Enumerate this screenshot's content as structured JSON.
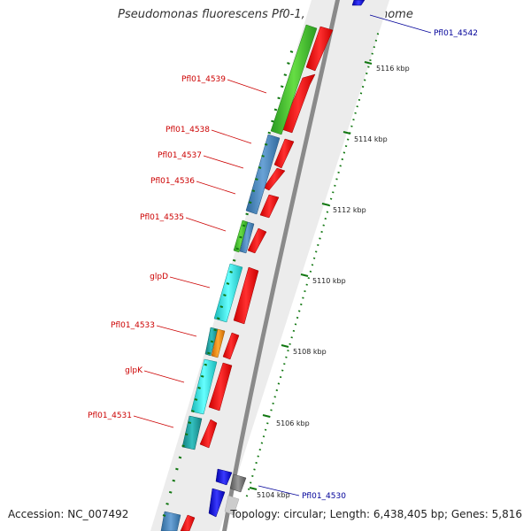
{
  "title": "Pseudomonas fluorescens Pf0-1, complete genome",
  "accession_text": "Accession: NC_007492",
  "topology_text": "Topology: circular; Length: 6,438,405 bp; Genes: 5,816",
  "colors": {
    "red_cds": "#ff1a1a",
    "green_gene": "#44cc33",
    "steelblue_gene": "#4a86c0",
    "cyan_gene": "#22eeee",
    "teal_gene": "#22aaaa",
    "orange_gene": "#ff9911",
    "blue_gene": "#1a1aee",
    "grey_gene": "#888888",
    "backbone": "#8a8a8a",
    "tick_green": "#117711",
    "label_red": "#cc0000",
    "label_blue": "#000099"
  },
  "ticks": [
    "5104 kbp",
    "5106 kbp",
    "5108 kbp",
    "5110 kbp",
    "5112 kbp",
    "5114 kbp",
    "5116 kbp"
  ],
  "left_labels": [
    "Pfl01_4539",
    "Pfl01_4538",
    "Pfl01_4537",
    "Pfl01_4536",
    "Pfl01_4535",
    "glpD",
    "Pfl01_4533",
    "glpK",
    "Pfl01_4531"
  ],
  "right_labels": [
    "Pfl01_4542",
    "Pfl01_4530"
  ]
}
